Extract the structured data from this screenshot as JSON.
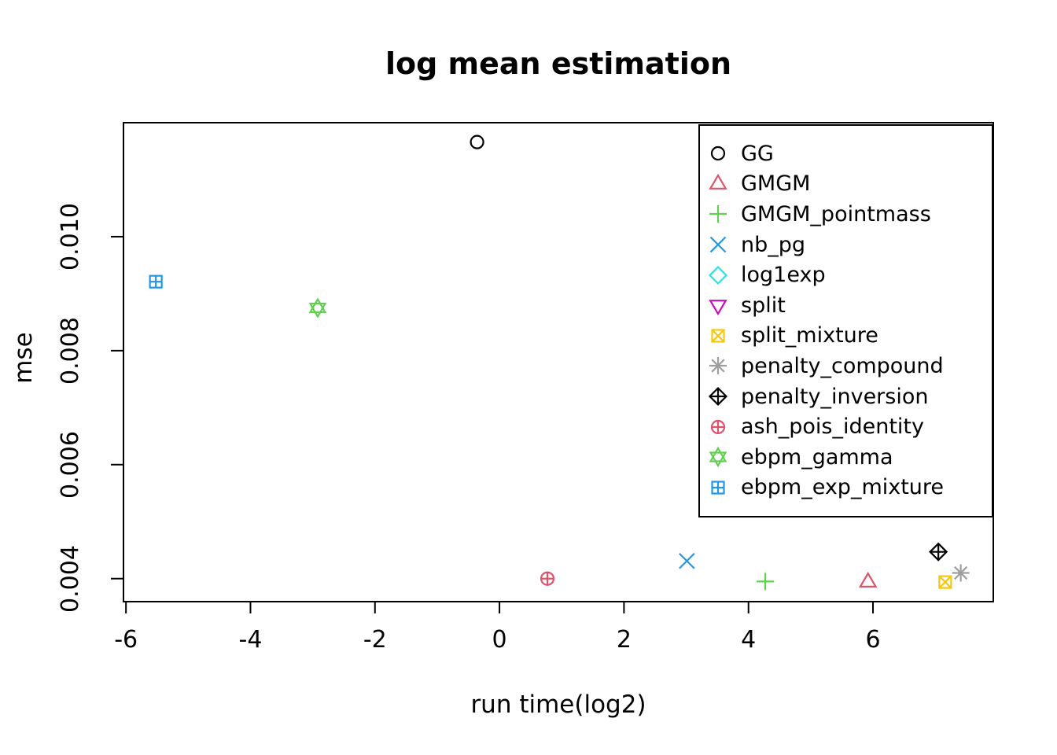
{
  "title": "log mean estimation",
  "chart_data": {
    "type": "scatter",
    "title": "log mean estimation",
    "xlabel": "run time(log2)",
    "ylabel": "mse",
    "xlim": [
      -6.04,
      7.92
    ],
    "ylim": [
      0.00361,
      0.012
    ],
    "xticks": [
      -6,
      -4,
      -2,
      0,
      2,
      4,
      6
    ],
    "xtick_labels": [
      "-6",
      "-4",
      "-2",
      "0",
      "2",
      "4",
      "6"
    ],
    "yticks": [
      0.004,
      0.006,
      0.008,
      0.01
    ],
    "ytick_labels": [
      "0.004",
      "0.006",
      "0.008",
      "0.010"
    ],
    "grid": false,
    "legend_position": "top-right",
    "axis_color": "#000000",
    "series": [
      {
        "name": "GG",
        "marker": "open-circle",
        "pch": 1,
        "color": "#000000",
        "points": [
          {
            "x": -0.36,
            "y": 0.01166
          }
        ]
      },
      {
        "name": "GMGM",
        "marker": "open-triangle-up",
        "pch": 2,
        "color": "#DF536B",
        "points": [
          {
            "x": 5.92,
            "y": 0.00394
          }
        ]
      },
      {
        "name": "GMGM_pointmass",
        "marker": "plus",
        "pch": 3,
        "color": "#61D04F",
        "points": [
          {
            "x": 4.27,
            "y": 0.00395
          }
        ]
      },
      {
        "name": "nb_pg",
        "marker": "x-cross",
        "pch": 4,
        "color": "#2297E6",
        "points": [
          {
            "x": 3.01,
            "y": 0.00431
          }
        ]
      },
      {
        "name": "log1exp",
        "marker": "open-diamond",
        "pch": 5,
        "color": "#28E2E5",
        "points": []
      },
      {
        "name": "split",
        "marker": "open-triangle-down",
        "pch": 6,
        "color": "#CD0BBC",
        "points": []
      },
      {
        "name": "split_mixture",
        "marker": "square-with-x",
        "pch": 7,
        "color": "#F5C710",
        "points": [
          {
            "x": 7.16,
            "y": 0.00394
          }
        ]
      },
      {
        "name": "penalty_compound",
        "marker": "asterisk",
        "pch": 8,
        "color": "#9E9E9E",
        "points": [
          {
            "x": 7.41,
            "y": 0.0041
          }
        ]
      },
      {
        "name": "penalty_inversion",
        "marker": "diamond-with-plus",
        "pch": 9,
        "color": "#000000",
        "points": [
          {
            "x": 7.05,
            "y": 0.00447
          }
        ]
      },
      {
        "name": "ash_pois_identity",
        "marker": "circle-with-plus",
        "pch": 10,
        "color": "#DF536B",
        "points": [
          {
            "x": 0.77,
            "y": 0.004
          }
        ]
      },
      {
        "name": "ebpm_gamma",
        "marker": "star-of-david",
        "pch": 11,
        "color": "#61D04F",
        "points": [
          {
            "x": -2.92,
            "y": 0.00875
          }
        ]
      },
      {
        "name": "ebpm_exp_mixture",
        "marker": "square-with-plus",
        "pch": 12,
        "color": "#2297E6",
        "points": [
          {
            "x": -5.52,
            "y": 0.00921
          }
        ]
      }
    ]
  }
}
